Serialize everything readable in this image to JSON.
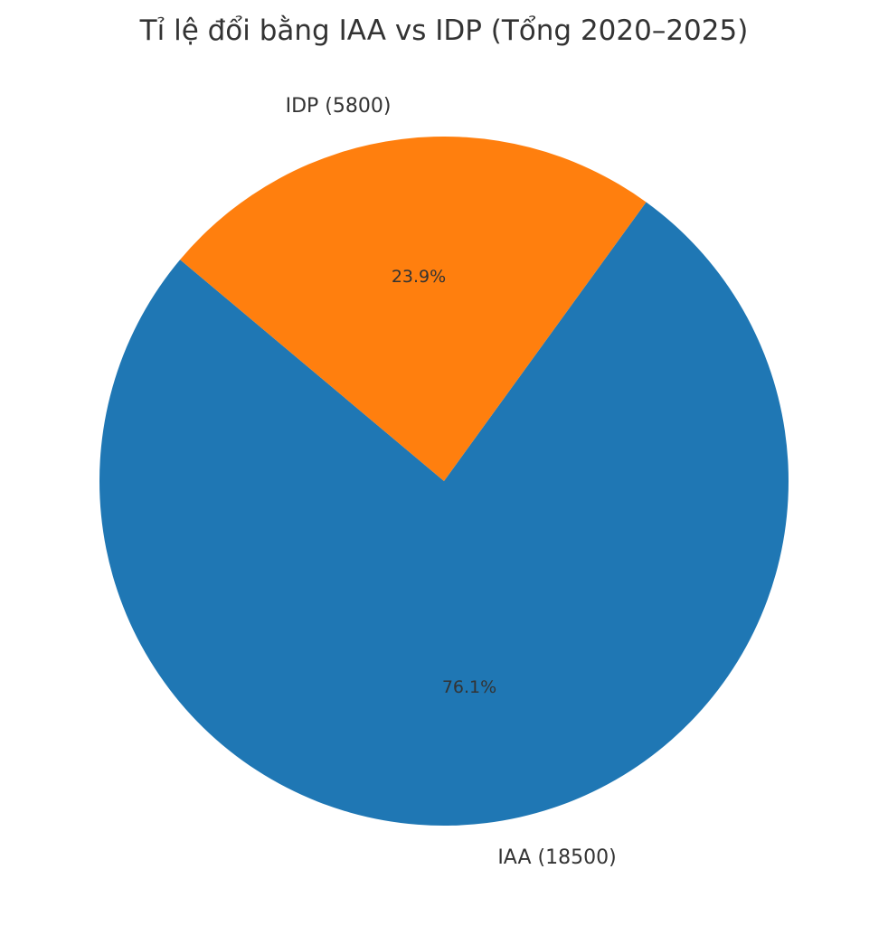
{
  "chart_data": {
    "type": "pie",
    "title": "Tỉ lệ đổi bằng IAA vs IDP (Tổng 2020–2025)",
    "categories": [
      "IAA",
      "IDP"
    ],
    "values": [
      18500,
      5800
    ],
    "percentages": [
      "76.1%",
      "23.9%"
    ],
    "labels": [
      "IAA (18500)",
      "IDP (5800)"
    ],
    "colors": [
      "#1f77b4",
      "#ff7f0e"
    ],
    "start_angle_deg": 140,
    "legend": false
  }
}
